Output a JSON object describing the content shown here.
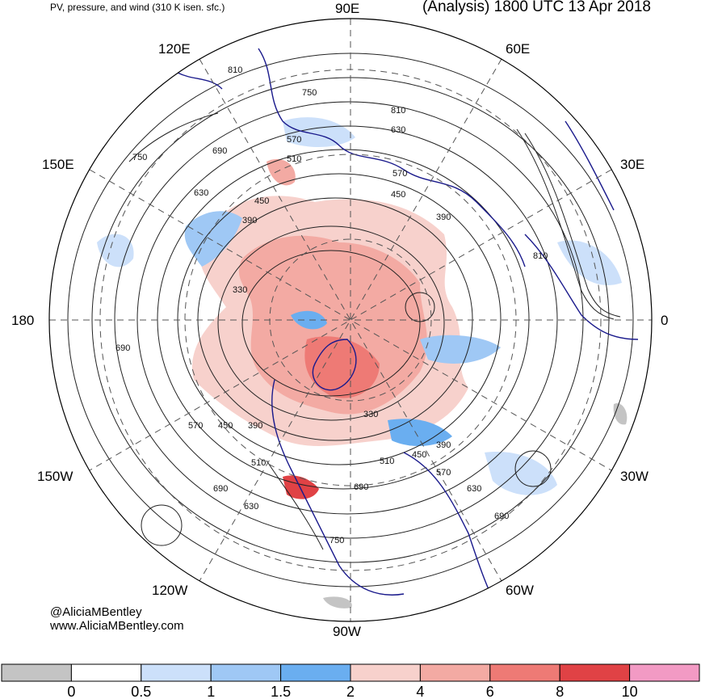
{
  "header": {
    "title_left": "PV, pressure, and wind (310 K isen. sfc.)",
    "title_right": "(Analysis) 1800 UTC 13 Apr 2018"
  },
  "map": {
    "projection": "north polar stereographic",
    "longitude_labels": {
      "top": "90E",
      "upper_left": "120E",
      "upper_right": "60E",
      "left_upper": "150E",
      "right_upper": "30E",
      "left": "180",
      "right": "0",
      "left_lower": "150W",
      "right_lower": "30W",
      "lower_left": "120W",
      "lower_right": "60W",
      "bottom": "90W"
    },
    "pressure_contour_labels": [
      "810",
      "750",
      "810",
      "630",
      "570",
      "510",
      "570",
      "450",
      "390",
      "690",
      "750",
      "630",
      "450",
      "390",
      "330",
      "810",
      "690",
      "570",
      "450",
      "390",
      "330",
      "390",
      "450",
      "510",
      "570",
      "510",
      "690",
      "690",
      "630",
      "630",
      "690",
      "750"
    ],
    "colors": {
      "coastline": "#1a1a8c",
      "pv_0_below": "#c4c4c4",
      "pv_0.5_1": "#cce0fa",
      "pv_1_1.5": "#9fc8f5",
      "pv_1.5_2": "#6aaef0",
      "pv_2_4": "#f7d1cc",
      "pv_4_6": "#f3aaa3",
      "pv_6_8": "#ee7a75",
      "pv_8_10": "#e04245",
      "pv_10_plus": "#f29ac4"
    }
  },
  "credits": {
    "handle": "@AliciaMBentley",
    "website": "www.AliciaMBentley.com"
  },
  "colorbar": {
    "tick_labels": [
      "0",
      "0.5",
      "1",
      "1.5",
      "2",
      "4",
      "6",
      "8",
      "10"
    ],
    "segment_colors": [
      "#c4c4c4",
      "#ffffff",
      "#cce0fa",
      "#9fc8f5",
      "#6aaef0",
      "#f7d1cc",
      "#f3aaa3",
      "#ee7a75",
      "#e04245",
      "#f29ac4"
    ]
  }
}
